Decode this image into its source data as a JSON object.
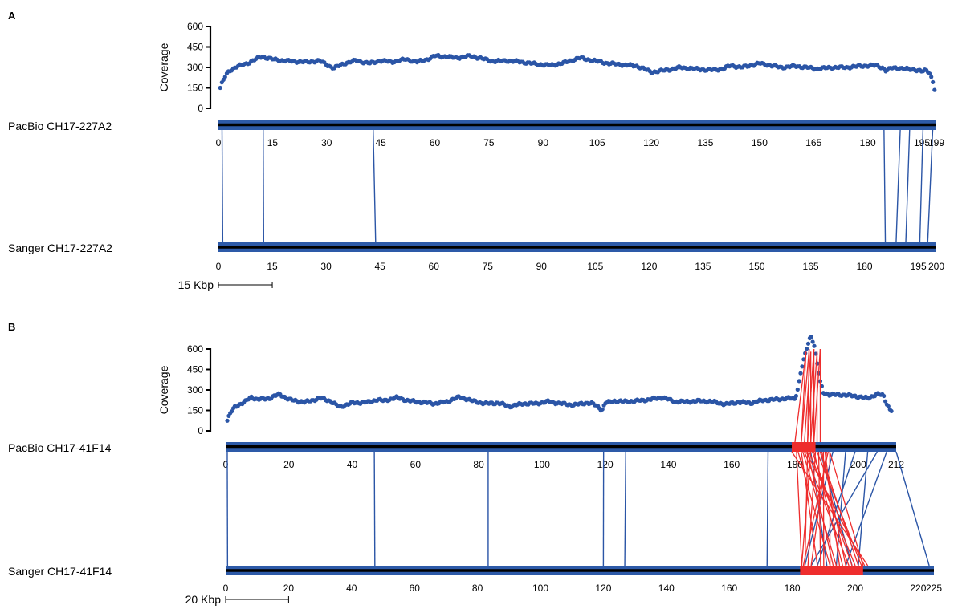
{
  "chart_data": [
    {
      "panel_label": "A",
      "type": "scatter",
      "coverage_ylabel": "Coverage",
      "coverage_yticks": [
        0,
        150,
        300,
        450,
        600
      ],
      "coverage_ylim": [
        0,
        600
      ],
      "coverage_profile": {
        "x_range": [
          0.5,
          198.5
        ],
        "points": 440,
        "anchors": [
          [
            0.5,
            150
          ],
          [
            1,
            185
          ],
          [
            2,
            240
          ],
          [
            3,
            275
          ],
          [
            5,
            305
          ],
          [
            8,
            330
          ],
          [
            12,
            380
          ],
          [
            15,
            360
          ],
          [
            20,
            345
          ],
          [
            25,
            340
          ],
          [
            28,
            350
          ],
          [
            30,
            320
          ],
          [
            32,
            295
          ],
          [
            35,
            330
          ],
          [
            38,
            350
          ],
          [
            42,
            330
          ],
          [
            45,
            350
          ],
          [
            48,
            340
          ],
          [
            52,
            360
          ],
          [
            55,
            340
          ],
          [
            58,
            360
          ],
          [
            60,
            385
          ],
          [
            63,
            380
          ],
          [
            66,
            370
          ],
          [
            70,
            385
          ],
          [
            73,
            365
          ],
          [
            76,
            345
          ],
          [
            80,
            350
          ],
          [
            84,
            340
          ],
          [
            88,
            325
          ],
          [
            92,
            315
          ],
          [
            96,
            335
          ],
          [
            100,
            370
          ],
          [
            104,
            350
          ],
          [
            108,
            330
          ],
          [
            112,
            320
          ],
          [
            116,
            310
          ],
          [
            118,
            290
          ],
          [
            120,
            265
          ],
          [
            124,
            280
          ],
          [
            128,
            300
          ],
          [
            132,
            290
          ],
          [
            136,
            280
          ],
          [
            140,
            290
          ],
          [
            142,
            315
          ],
          [
            145,
            300
          ],
          [
            150,
            330
          ],
          [
            153,
            315
          ],
          [
            156,
            300
          ],
          [
            160,
            310
          ],
          [
            163,
            300
          ],
          [
            166,
            290
          ],
          [
            170,
            300
          ],
          [
            174,
            300
          ],
          [
            178,
            310
          ],
          [
            182,
            315
          ],
          [
            184,
            300
          ],
          [
            185,
            275
          ],
          [
            187,
            300
          ],
          [
            190,
            290
          ],
          [
            193,
            285
          ],
          [
            195,
            270
          ],
          [
            196,
            280
          ],
          [
            197,
            270
          ],
          [
            198,
            200
          ],
          [
            198.5,
            140
          ]
        ]
      },
      "tracks": [
        {
          "name": "PacBio CH17-227A2",
          "length": 199,
          "ticks": [
            0,
            15,
            30,
            45,
            60,
            75,
            90,
            105,
            120,
            135,
            150,
            165,
            180,
            195,
            199
          ]
        },
        {
          "name": "Sanger CH17-227A2",
          "length": 200,
          "ticks": [
            0,
            15,
            30,
            45,
            60,
            75,
            90,
            105,
            120,
            135,
            150,
            165,
            180,
            195,
            200
          ]
        }
      ],
      "alignments_blue": [
        [
          1.0,
          1.2
        ],
        [
          12.4,
          12.6
        ],
        [
          42.9,
          43.8
        ],
        [
          184.5,
          185.8
        ],
        [
          189.0,
          188.8
        ],
        [
          191.6,
          191.5
        ],
        [
          195.3,
          195.4
        ],
        [
          198.0,
          197.6
        ]
      ],
      "alignments_red": [],
      "scale_bar": {
        "label": "15 Kbp",
        "length": 15
      }
    },
    {
      "panel_label": "B",
      "type": "scatter",
      "coverage_ylabel": "Coverage",
      "coverage_yticks": [
        0,
        150,
        300,
        450,
        600
      ],
      "coverage_ylim": [
        0,
        600
      ],
      "coverage_profile": {
        "x_range": [
          0.5,
          210.5
        ],
        "points": 440,
        "anchors": [
          [
            0.5,
            75
          ],
          [
            1.5,
            130
          ],
          [
            3,
            180
          ],
          [
            6,
            210
          ],
          [
            8,
            250
          ],
          [
            10,
            230
          ],
          [
            14,
            240
          ],
          [
            17,
            270
          ],
          [
            20,
            230
          ],
          [
            25,
            210
          ],
          [
            30,
            240
          ],
          [
            33,
            220
          ],
          [
            36,
            175
          ],
          [
            40,
            205
          ],
          [
            45,
            210
          ],
          [
            48,
            230
          ],
          [
            50,
            220
          ],
          [
            54,
            245
          ],
          [
            58,
            220
          ],
          [
            62,
            210
          ],
          [
            66,
            200
          ],
          [
            70,
            215
          ],
          [
            74,
            250
          ],
          [
            78,
            220
          ],
          [
            82,
            200
          ],
          [
            86,
            205
          ],
          [
            90,
            180
          ],
          [
            94,
            200
          ],
          [
            98,
            200
          ],
          [
            102,
            215
          ],
          [
            106,
            200
          ],
          [
            110,
            190
          ],
          [
            114,
            205
          ],
          [
            116,
            200
          ],
          [
            118,
            175
          ],
          [
            119,
            150
          ],
          [
            120,
            205
          ],
          [
            123,
            220
          ],
          [
            126,
            215
          ],
          [
            130,
            220
          ],
          [
            134,
            230
          ],
          [
            138,
            245
          ],
          [
            142,
            215
          ],
          [
            146,
            215
          ],
          [
            150,
            220
          ],
          [
            154,
            215
          ],
          [
            158,
            195
          ],
          [
            162,
            210
          ],
          [
            166,
            205
          ],
          [
            170,
            225
          ],
          [
            174,
            230
          ],
          [
            178,
            240
          ],
          [
            180,
            235
          ],
          [
            181,
            320
          ],
          [
            182,
            450
          ],
          [
            184,
            630
          ],
          [
            185,
            700
          ],
          [
            186,
            640
          ],
          [
            187,
            500
          ],
          [
            188,
            360
          ],
          [
            189,
            280
          ],
          [
            191,
            265
          ],
          [
            195,
            265
          ],
          [
            199,
            255
          ],
          [
            203,
            240
          ],
          [
            206,
            270
          ],
          [
            208,
            260
          ],
          [
            209,
            200
          ],
          [
            210,
            160
          ],
          [
            210.5,
            150
          ]
        ]
      },
      "tracks": [
        {
          "name": "PacBio CH17-41F14",
          "length": 212,
          "ticks": [
            0,
            20,
            40,
            60,
            80,
            100,
            120,
            140,
            160,
            180,
            200,
            212
          ]
        },
        {
          "name": "Sanger CH17-41F14",
          "length": 225,
          "ticks": [
            0,
            20,
            40,
            60,
            80,
            100,
            120,
            140,
            160,
            180,
            200,
            220,
            225
          ]
        }
      ],
      "alignments_blue": [
        [
          0.5,
          0.6
        ],
        [
          47.0,
          47.4
        ],
        [
          83.0,
          83.4
        ],
        [
          119.5,
          120.0
        ],
        [
          126.5,
          126.8
        ],
        [
          171.5,
          172.0
        ],
        [
          185.0,
          191.0
        ],
        [
          188.0,
          199.0
        ],
        [
          192.0,
          184.0
        ],
        [
          196.0,
          194.0
        ],
        [
          199.0,
          188.0
        ],
        [
          203.0,
          201.0
        ],
        [
          206.0,
          186.0
        ],
        [
          209.0,
          197.0
        ],
        [
          212.0,
          223.5
        ]
      ],
      "alignments_red": [
        [
          182.0,
          188.0
        ],
        [
          184.0,
          184.0
        ],
        [
          186.0,
          196.0
        ],
        [
          188.0,
          201.0
        ],
        [
          190.0,
          186.0
        ],
        [
          191.0,
          192.0
        ],
        [
          183.0,
          198.0
        ],
        [
          185.0,
          183.0
        ],
        [
          187.0,
          202.0
        ],
        [
          189.0,
          190.0
        ],
        [
          182.5,
          194.0
        ],
        [
          184.5,
          200.0
        ],
        [
          186.5,
          185.0
        ],
        [
          188.5,
          197.0
        ],
        [
          190.5,
          183.5
        ],
        [
          181.0,
          192.0
        ],
        [
          179.0,
          204.0
        ],
        [
          183.5,
          203.0
        ],
        [
          187.5,
          189.0
        ],
        [
          189.5,
          195.0
        ],
        [
          185.5,
          199.0
        ],
        [
          180.5,
          183.0
        ],
        [
          191.0,
          202.5
        ],
        [
          184.0,
          193.0
        ]
      ],
      "red_block_range": [
        179.0,
        186.5
      ],
      "red_block_range_bottom": [
        182.5,
        202.5
      ],
      "red_peak_lines": [
        [
          180,
          183.5
        ],
        [
          182,
          184.5
        ],
        [
          183,
          185
        ],
        [
          184,
          186
        ],
        [
          185,
          187
        ],
        [
          186,
          188
        ]
      ],
      "scale_bar": {
        "label": "20 Kbp",
        "length": 20
      }
    }
  ]
}
